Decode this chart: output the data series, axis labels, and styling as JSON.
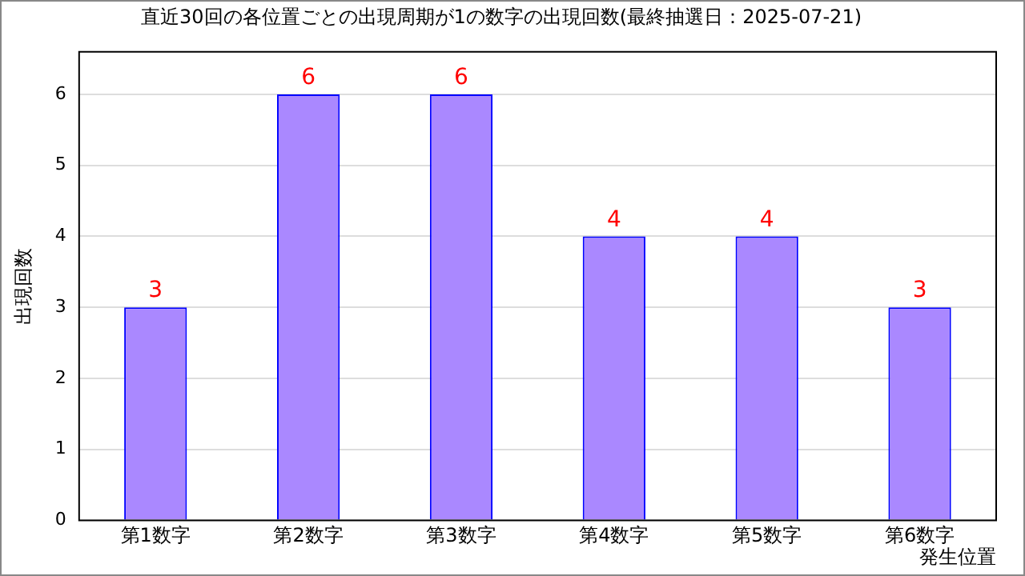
{
  "chart_data": {
    "type": "bar",
    "title": "直近30回の各位置ごとの出現周期が1の数字の出現回数(最終抽選日：2025-07-21)",
    "xlabel": "発生位置",
    "ylabel": "出現回数",
    "categories": [
      "第1数字",
      "第2数字",
      "第3数字",
      "第4数字",
      "第5数字",
      "第6数字"
    ],
    "values": [
      3,
      6,
      6,
      4,
      4,
      3
    ],
    "color": "#aa88ff",
    "ylim": [
      0,
      6.6
    ],
    "yticks": [
      0,
      1,
      2,
      3,
      4,
      5,
      6
    ],
    "grid": "y",
    "data_labels": true,
    "legend": false
  }
}
